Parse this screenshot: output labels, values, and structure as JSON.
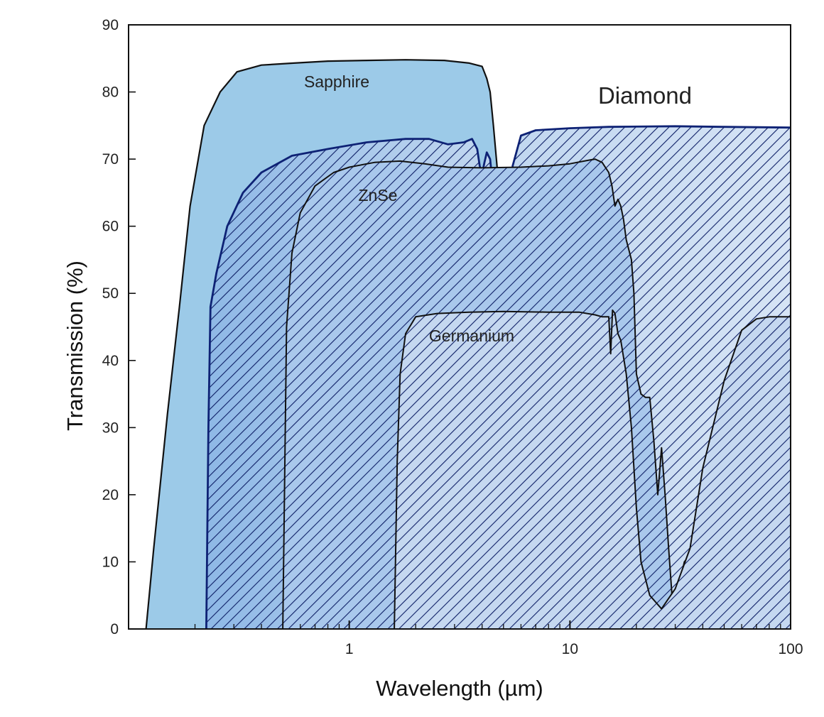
{
  "chart_data": {
    "type": "area",
    "xlabel": "Wavelength (µm)",
    "ylabel": "Transmission (%)",
    "x_scale": "log",
    "xlim": [
      0.1,
      100
    ],
    "ylim": [
      0,
      90
    ],
    "x_ticks": [
      1,
      10,
      100
    ],
    "x_tick_labels": [
      "1",
      "10",
      "100"
    ],
    "y_ticks": [
      0,
      10,
      20,
      30,
      40,
      50,
      60,
      70,
      80,
      90
    ],
    "y_tick_labels": [
      "0",
      "10",
      "20",
      "30",
      "40",
      "50",
      "60",
      "70",
      "80",
      "90"
    ],
    "grid": false,
    "legend": "none",
    "colors": {
      "sapphire_fill": "#9ccae8",
      "diamond_fill": "#c5d9f0",
      "diamond_stroke": "#0e2275",
      "znse_fill": "#a9c8ec",
      "germanium_fill": "#c5d8f0",
      "hatch": "#0e1f66",
      "outline": "#111111"
    },
    "series": [
      {
        "name": "Sapphire",
        "label": "Sapphire",
        "style": "solid",
        "x": [
          0.12,
          0.13,
          0.15,
          0.17,
          0.19,
          0.22,
          0.26,
          0.31,
          0.4,
          0.56,
          0.8,
          1.2,
          1.8,
          2.7,
          3.5,
          4.0,
          4.2,
          4.35,
          4.5,
          4.7,
          4.9,
          5.0,
          5.1,
          5.2
        ],
        "values": [
          0,
          12,
          32,
          48,
          63,
          75,
          80,
          83,
          84,
          84.3,
          84.6,
          84.7,
          84.8,
          84.7,
          84.3,
          83.8,
          82,
          80,
          75,
          68,
          62,
          60,
          62,
          68
        ]
      },
      {
        "name": "Diamond",
        "label": "Diamond",
        "style": "hatched",
        "x": [
          0.225,
          0.23,
          0.235,
          0.25,
          0.28,
          0.33,
          0.4,
          0.55,
          0.8,
          1.2,
          1.8,
          2.3,
          2.8,
          3.3,
          3.6,
          3.8,
          3.9,
          4.0,
          4.1,
          4.2,
          4.35,
          4.5,
          4.6,
          4.7,
          4.8,
          4.9,
          5.0,
          5.1,
          5.25,
          5.5,
          6.0,
          7.0,
          10,
          15,
          30,
          50,
          100
        ],
        "values": [
          0,
          30,
          48,
          53,
          60,
          65,
          68,
          70.5,
          71.5,
          72.5,
          73,
          73,
          72.2,
          72.5,
          73.0,
          71.5,
          69,
          67.8,
          69.5,
          71,
          70,
          65,
          62,
          64,
          65,
          63,
          61,
          61,
          62.5,
          69,
          73.5,
          74.3,
          74.6,
          74.8,
          74.9,
          74.8,
          74.7
        ]
      },
      {
        "name": "ZnSe",
        "label": "ZnSe",
        "style": "hatched",
        "x": [
          0.5,
          0.52,
          0.55,
          0.6,
          0.7,
          0.85,
          1.0,
          1.3,
          1.7,
          2.2,
          2.8,
          4.0,
          6.0,
          8.0,
          10,
          12,
          13,
          14,
          15,
          15.5,
          16,
          16.5,
          17,
          17.5,
          18,
          19,
          19.5,
          20,
          21,
          22,
          23,
          24,
          25,
          26,
          27,
          28,
          29,
          30,
          31,
          33,
          35,
          37,
          40
        ],
        "values": [
          0,
          45,
          56,
          62,
          66,
          68,
          68.8,
          69.5,
          69.7,
          69.3,
          68.8,
          68.7,
          68.8,
          69,
          69.3,
          69.8,
          70.0,
          69.5,
          68,
          66,
          63,
          64,
          63,
          61,
          58,
          55,
          50,
          38,
          35,
          34.5,
          34.5,
          28,
          20,
          27,
          20,
          12,
          5,
          2.5,
          6,
          10,
          11,
          9,
          8
        ]
      },
      {
        "name": "Germanium",
        "label": "Germanium",
        "style": "hatched",
        "x": [
          1.6,
          1.65,
          1.7,
          1.8,
          2.0,
          2.5,
          3.5,
          5.0,
          8.0,
          11,
          13,
          14,
          15,
          15.3,
          15.6,
          16,
          16.5,
          17,
          18,
          19,
          20,
          21,
          23,
          26,
          30,
          35,
          40,
          50,
          60,
          70,
          80,
          100
        ],
        "values": [
          0,
          25,
          38,
          44,
          46.5,
          47,
          47.2,
          47.3,
          47.2,
          47.2,
          46.8,
          46.5,
          46.5,
          41,
          47.5,
          47,
          44,
          43,
          38,
          30,
          18,
          10,
          5,
          3,
          6,
          12,
          24,
          37,
          44.5,
          46.2,
          46.5,
          46.5
        ]
      }
    ]
  }
}
